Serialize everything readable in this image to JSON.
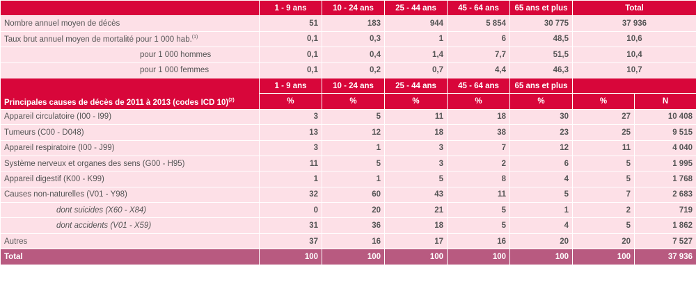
{
  "top_header": {
    "col1": "1 - 9 ans",
    "col2": "10 - 24 ans",
    "col3": "25 - 44 ans",
    "col4": "45 - 64 ans",
    "col5": "65 ans et plus",
    "col6": "Total"
  },
  "mortality": {
    "row1": {
      "label": "Nombre annuel moyen de décès",
      "v1": "51",
      "v2": "183",
      "v3": "944",
      "v4": "5 854",
      "v5": "30 775",
      "total": "37 936"
    },
    "row2": {
      "label": "Taux brut annuel moyen de mortalité pour 1 000 hab.",
      "sup": "(1)",
      "v1": "0,1",
      "v2": "0,3",
      "v3": "1",
      "v4": "6",
      "v5": "48,5",
      "total": "10,6"
    },
    "row3": {
      "label": "pour 1 000 hommes",
      "v1": "0,1",
      "v2": "0,4",
      "v3": "1,4",
      "v4": "7,7",
      "v5": "51,5",
      "total": "10,4"
    },
    "row4": {
      "label": "pour 1 000 femmes",
      "v1": "0,1",
      "v2": "0,2",
      "v3": "0,7",
      "v4": "4,4",
      "v5": "46,3",
      "total": "10,7"
    }
  },
  "causes_header": {
    "title": "Principales causes de décès de 2011 à 2013 (codes ICD 10)",
    "title_sup": "(2)",
    "col1": "1 - 9 ans",
    "col2": "10 - 24 ans",
    "col3": "25 - 44 ans",
    "col4": "45 - 64 ans",
    "col5": "65 ans et plus",
    "pct": "%",
    "n": "N"
  },
  "causes": [
    {
      "label": "Appareil circulatoire (I00 - I99)",
      "v1": "3",
      "v2": "5",
      "v3": "11",
      "v4": "18",
      "v5": "30",
      "pct": "27",
      "n": "10 408"
    },
    {
      "label": "Tumeurs (C00 - D048)",
      "v1": "13",
      "v2": "12",
      "v3": "18",
      "v4": "38",
      "v5": "23",
      "pct": "25",
      "n": "9 515"
    },
    {
      "label": "Appareil respiratoire (I00 - J99)",
      "v1": "3",
      "v2": "1",
      "v3": "3",
      "v4": "7",
      "v5": "12",
      "pct": "11",
      "n": "4 040"
    },
    {
      "label": "Système nerveux et organes des sens (G00 - H95)",
      "v1": "11",
      "v2": "5",
      "v3": "3",
      "v4": "2",
      "v5": "6",
      "pct": "5",
      "n": "1 995"
    },
    {
      "label": "Appareil digestif (K00 - K99)",
      "v1": "1",
      "v2": "1",
      "v3": "5",
      "v4": "8",
      "v5": "4",
      "pct": "5",
      "n": "1 768"
    },
    {
      "label": "Causes non-naturelles (V01 - Y98)",
      "v1": "32",
      "v2": "60",
      "v3": "43",
      "v4": "11",
      "v5": "5",
      "pct": "7",
      "n": "2 683"
    },
    {
      "label": "dont suicides (X60 - X84)",
      "v1": "0",
      "v2": "20",
      "v3": "21",
      "v4": "5",
      "v5": "1",
      "pct": "2",
      "n": "719"
    },
    {
      "label": "dont accidents (V01 - X59)",
      "v1": "31",
      "v2": "36",
      "v3": "18",
      "v4": "5",
      "v5": "4",
      "pct": "5",
      "n": "1 862"
    },
    {
      "label": "Autres",
      "v1": "37",
      "v2": "16",
      "v3": "17",
      "v4": "16",
      "v5": "20",
      "pct": "20",
      "n": "7 527"
    }
  ],
  "total_row": {
    "label": "Total",
    "v1": "100",
    "v2": "100",
    "v3": "100",
    "v4": "100",
    "v5": "100",
    "pct": "100",
    "n": "37 936"
  },
  "colors": {
    "header_red": "#d8063a",
    "row_pink": "#fde0e7",
    "total_mauve": "#b85a80",
    "text_grey": "#555555"
  }
}
